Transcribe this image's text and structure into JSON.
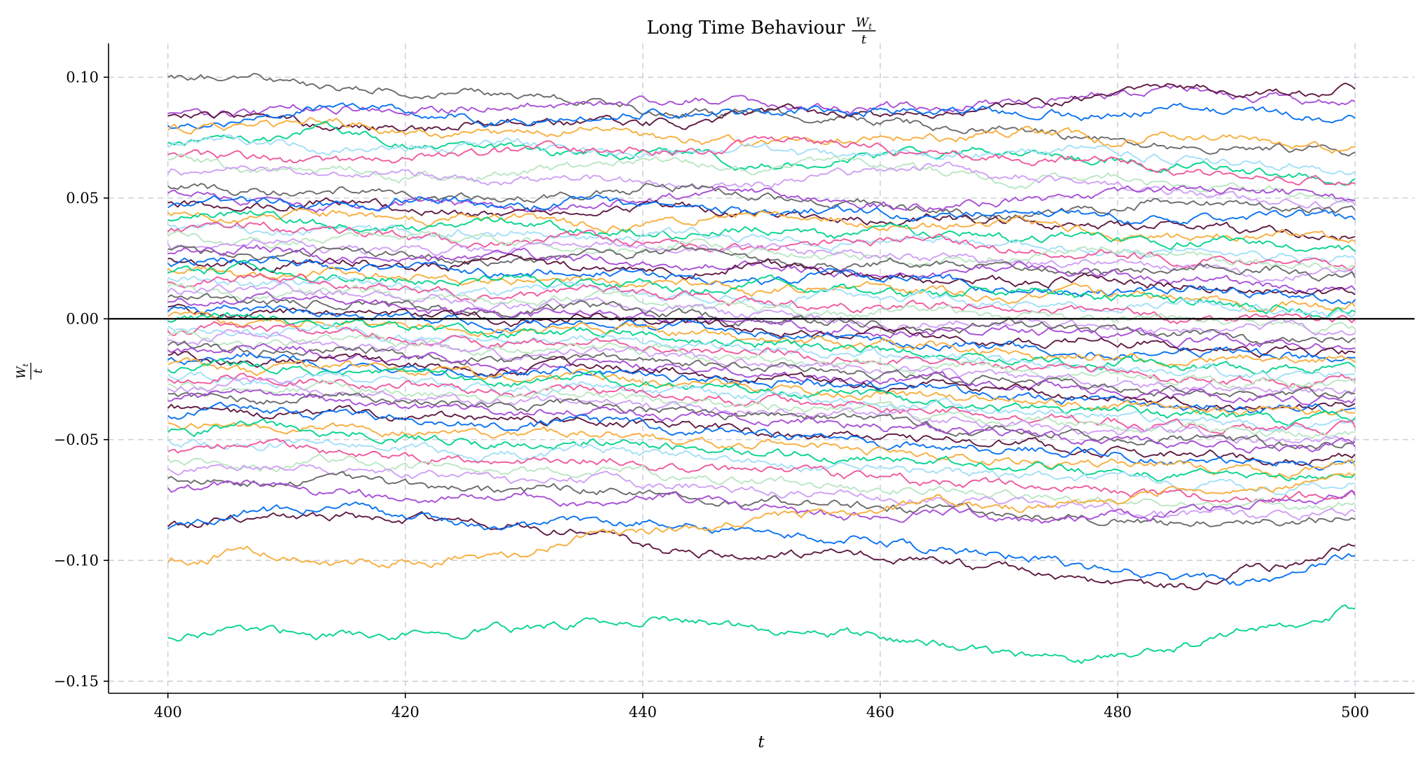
{
  "chart_data": {
    "type": "line",
    "title": "Long Time Behaviour",
    "title_fraction": {
      "numerator": "W",
      "numerator_sub": "t",
      "denominator": "t"
    },
    "xlabel": "t",
    "ylabel_fraction": {
      "numerator": "W",
      "numerator_sub": "t",
      "denominator": "t"
    },
    "xlim": [
      395,
      505
    ],
    "ylim": [
      -0.155,
      0.114
    ],
    "x_ticks": [
      400,
      420,
      440,
      460,
      480,
      500
    ],
    "x_tick_labels": [
      "400",
      "420",
      "440",
      "460",
      "480",
      "500"
    ],
    "y_ticks": [
      0.1,
      0.05,
      0.0,
      -0.05,
      -0.1,
      -0.15
    ],
    "y_tick_labels": [
      "0.10",
      "0.05",
      "0.00",
      "−0.05",
      "−0.10",
      "−0.15"
    ],
    "grid": true,
    "horizontal_reference_line": 0,
    "x_range": [
      400,
      500
    ],
    "palette": [
      "#6b6b6b",
      "#a84fd6",
      "#5e1a42",
      "#0a72f2",
      "#f7ae3d",
      "#06d48e",
      "#a3dff8",
      "#ee5a9e",
      "#b9e6c2",
      "#cfa0f5"
    ],
    "series_keypoints": [
      [
        0.1,
        0.099,
        0.096,
        0.094,
        0.093,
        0.09,
        0.086,
        0.084,
        0.083,
        0.08,
        0.078,
        0.074,
        0.072,
        0.07,
        0.069
      ],
      [
        0.085,
        0.086,
        0.088,
        0.087,
        0.088,
        0.089,
        0.091,
        0.089,
        0.087,
        0.088,
        0.09,
        0.093,
        0.095,
        0.092,
        0.09
      ],
      [
        0.084,
        0.083,
        0.08,
        0.079,
        0.082,
        0.08,
        0.081,
        0.086,
        0.085,
        0.084,
        0.088,
        0.092,
        0.096,
        0.094,
        0.095
      ],
      [
        0.08,
        0.082,
        0.088,
        0.086,
        0.081,
        0.084,
        0.087,
        0.085,
        0.087,
        0.086,
        0.085,
        0.084,
        0.087,
        0.085,
        0.083
      ],
      [
        0.078,
        0.08,
        0.082,
        0.077,
        0.076,
        0.078,
        0.074,
        0.072,
        0.074,
        0.075,
        0.078,
        0.074,
        0.076,
        0.073,
        0.071
      ],
      [
        0.073,
        0.074,
        0.079,
        0.073,
        0.071,
        0.068,
        0.07,
        0.064,
        0.066,
        0.069,
        0.07,
        0.066,
        0.063,
        0.06,
        0.058
      ],
      [
        0.071,
        0.074,
        0.07,
        0.071,
        0.074,
        0.07,
        0.068,
        0.07,
        0.067,
        0.068,
        0.069,
        0.071,
        0.066,
        0.064,
        0.061
      ],
      [
        0.068,
        0.067,
        0.064,
        0.066,
        0.069,
        0.071,
        0.069,
        0.072,
        0.074,
        0.068,
        0.066,
        0.066,
        0.061,
        0.058,
        0.056
      ],
      [
        0.066,
        0.062,
        0.063,
        0.058,
        0.06,
        0.063,
        0.066,
        0.062,
        0.065,
        0.061,
        0.057,
        0.06,
        0.056,
        0.053,
        0.05
      ],
      [
        0.06,
        0.063,
        0.06,
        0.061,
        0.057,
        0.058,
        0.055,
        0.056,
        0.06,
        0.063,
        0.059,
        0.055,
        0.053,
        0.049,
        0.047
      ],
      [
        0.055,
        0.052,
        0.054,
        0.051,
        0.049,
        0.052,
        0.055,
        0.05,
        0.048,
        0.045,
        0.043,
        0.046,
        0.05,
        0.047,
        0.045
      ],
      [
        0.052,
        0.05,
        0.046,
        0.048,
        0.045,
        0.047,
        0.05,
        0.052,
        0.048,
        0.046,
        0.049,
        0.051,
        0.054,
        0.052,
        0.049
      ],
      [
        0.048,
        0.046,
        0.049,
        0.046,
        0.043,
        0.044,
        0.047,
        0.043,
        0.04,
        0.042,
        0.04,
        0.037,
        0.039,
        0.036,
        0.034
      ],
      [
        0.046,
        0.049,
        0.047,
        0.05,
        0.047,
        0.049,
        0.046,
        0.044,
        0.046,
        0.043,
        0.045,
        0.042,
        0.04,
        0.043,
        0.041
      ],
      [
        0.044,
        0.041,
        0.043,
        0.04,
        0.042,
        0.039,
        0.041,
        0.044,
        0.041,
        0.038,
        0.04,
        0.036,
        0.033,
        0.036,
        0.032
      ],
      [
        0.041,
        0.043,
        0.038,
        0.037,
        0.04,
        0.037,
        0.035,
        0.037,
        0.034,
        0.036,
        0.033,
        0.035,
        0.032,
        0.03,
        0.028
      ],
      [
        0.039,
        0.036,
        0.038,
        0.035,
        0.037,
        0.034,
        0.036,
        0.033,
        0.03,
        0.032,
        0.03,
        0.028,
        0.03,
        0.026,
        0.025
      ],
      [
        0.036,
        0.039,
        0.036,
        0.033,
        0.031,
        0.034,
        0.03,
        0.028,
        0.031,
        0.033,
        0.029,
        0.027,
        0.024,
        0.026,
        0.022
      ],
      [
        0.034,
        0.031,
        0.033,
        0.035,
        0.032,
        0.029,
        0.031,
        0.028,
        0.026,
        0.024,
        0.027,
        0.029,
        0.026,
        0.023,
        0.021
      ],
      [
        0.031,
        0.033,
        0.029,
        0.027,
        0.03,
        0.032,
        0.028,
        0.03,
        0.027,
        0.025,
        0.022,
        0.024,
        0.021,
        0.019,
        0.018
      ],
      [
        0.029,
        0.026,
        0.028,
        0.025,
        0.023,
        0.026,
        0.028,
        0.025,
        0.022,
        0.024,
        0.021,
        0.019,
        0.022,
        0.02,
        0.017
      ],
      [
        0.027,
        0.029,
        0.026,
        0.024,
        0.027,
        0.024,
        0.021,
        0.023,
        0.02,
        0.018,
        0.021,
        0.018,
        0.016,
        0.014,
        0.012
      ],
      [
        0.025,
        0.022,
        0.024,
        0.021,
        0.024,
        0.021,
        0.019,
        0.022,
        0.019,
        0.017,
        0.015,
        0.017,
        0.014,
        0.012,
        0.01
      ],
      [
        0.023,
        0.025,
        0.022,
        0.02,
        0.018,
        0.02,
        0.017,
        0.015,
        0.018,
        0.016,
        0.013,
        0.011,
        0.013,
        0.01,
        0.008
      ],
      [
        0.021,
        0.018,
        0.02,
        0.017,
        0.015,
        0.017,
        0.015,
        0.012,
        0.014,
        0.011,
        0.009,
        0.011,
        0.008,
        0.006,
        0.005
      ],
      [
        0.019,
        0.021,
        0.018,
        0.016,
        0.018,
        0.015,
        0.013,
        0.015,
        0.012,
        0.01,
        0.012,
        0.009,
        0.007,
        0.005,
        0.003
      ],
      [
        0.017,
        0.014,
        0.016,
        0.013,
        0.011,
        0.013,
        0.01,
        0.008,
        0.011,
        0.008,
        0.006,
        0.004,
        0.006,
        0.004,
        0.002
      ],
      [
        0.015,
        0.017,
        0.014,
        0.012,
        0.009,
        0.011,
        0.009,
        0.006,
        0.004,
        0.006,
        0.004,
        0.002,
        0.0,
        0.002,
        0.0
      ],
      [
        0.013,
        0.01,
        0.012,
        0.009,
        0.007,
        0.009,
        0.006,
        0.004,
        0.002,
        0.004,
        0.001,
        -0.001,
        0.001,
        -0.002,
        -0.004
      ],
      [
        0.011,
        0.013,
        0.01,
        0.008,
        0.005,
        0.007,
        0.004,
        0.002,
        0.0,
        -0.002,
        0.0,
        -0.003,
        -0.005,
        -0.003,
        -0.006
      ],
      [
        0.009,
        0.006,
        0.008,
        0.005,
        0.003,
        0.005,
        0.002,
        0.0,
        -0.002,
        -0.004,
        -0.002,
        -0.005,
        -0.007,
        -0.009,
        -0.008
      ],
      [
        0.007,
        0.009,
        0.006,
        0.004,
        0.001,
        0.003,
        0.0,
        -0.002,
        -0.004,
        -0.006,
        -0.004,
        -0.007,
        -0.009,
        -0.011,
        -0.012
      ],
      [
        0.005,
        0.002,
        0.004,
        0.001,
        -0.001,
        0.001,
        -0.002,
        -0.004,
        -0.006,
        -0.008,
        -0.01,
        -0.008,
        -0.011,
        -0.013,
        -0.014
      ],
      [
        0.003,
        0.005,
        0.002,
        0.0,
        -0.003,
        -0.001,
        -0.004,
        -0.006,
        -0.008,
        -0.01,
        -0.012,
        -0.014,
        -0.012,
        -0.015,
        -0.016
      ],
      [
        0.001,
        -0.002,
        0.0,
        -0.003,
        -0.005,
        -0.003,
        -0.006,
        -0.008,
        -0.01,
        -0.012,
        -0.014,
        -0.016,
        -0.018,
        -0.016,
        -0.018
      ],
      [
        -0.001,
        0.001,
        -0.002,
        -0.004,
        -0.007,
        -0.005,
        -0.008,
        -0.01,
        -0.012,
        -0.014,
        -0.016,
        -0.018,
        -0.02,
        -0.022,
        -0.02
      ],
      [
        -0.003,
        -0.006,
        -0.004,
        -0.007,
        -0.009,
        -0.007,
        -0.01,
        -0.012,
        -0.014,
        -0.016,
        -0.018,
        -0.02,
        -0.022,
        -0.024,
        -0.023
      ],
      [
        -0.005,
        -0.003,
        -0.006,
        -0.008,
        -0.011,
        -0.009,
        -0.012,
        -0.014,
        -0.016,
        -0.018,
        -0.02,
        -0.022,
        -0.024,
        -0.026,
        -0.025
      ],
      [
        -0.007,
        -0.01,
        -0.008,
        -0.011,
        -0.013,
        -0.011,
        -0.014,
        -0.016,
        -0.018,
        -0.02,
        -0.022,
        -0.024,
        -0.026,
        -0.028,
        -0.027
      ],
      [
        -0.009,
        -0.007,
        -0.01,
        -0.012,
        -0.015,
        -0.013,
        -0.016,
        -0.018,
        -0.02,
        -0.022,
        -0.024,
        -0.026,
        -0.028,
        -0.03,
        -0.029
      ],
      [
        -0.011,
        -0.014,
        -0.012,
        -0.015,
        -0.017,
        -0.015,
        -0.018,
        -0.02,
        -0.022,
        -0.024,
        -0.026,
        -0.028,
        -0.03,
        -0.032,
        -0.031
      ],
      [
        -0.013,
        -0.011,
        -0.014,
        -0.016,
        -0.019,
        -0.017,
        -0.02,
        -0.022,
        -0.024,
        -0.026,
        -0.028,
        -0.03,
        -0.032,
        -0.034,
        -0.033
      ],
      [
        -0.015,
        -0.018,
        -0.016,
        -0.019,
        -0.021,
        -0.019,
        -0.022,
        -0.024,
        -0.026,
        -0.028,
        -0.03,
        -0.032,
        -0.034,
        -0.036,
        -0.035
      ],
      [
        -0.017,
        -0.015,
        -0.018,
        -0.02,
        -0.023,
        -0.021,
        -0.024,
        -0.026,
        -0.028,
        -0.03,
        -0.032,
        -0.034,
        -0.036,
        -0.038,
        -0.037
      ],
      [
        -0.019,
        -0.022,
        -0.02,
        -0.023,
        -0.025,
        -0.023,
        -0.026,
        -0.028,
        -0.03,
        -0.032,
        -0.034,
        -0.036,
        -0.038,
        -0.04,
        -0.039
      ],
      [
        -0.021,
        -0.019,
        -0.022,
        -0.024,
        -0.027,
        -0.025,
        -0.028,
        -0.03,
        -0.032,
        -0.034,
        -0.036,
        -0.038,
        -0.04,
        -0.042,
        -0.041
      ],
      [
        -0.023,
        -0.026,
        -0.024,
        -0.027,
        -0.029,
        -0.027,
        -0.03,
        -0.032,
        -0.034,
        -0.036,
        -0.038,
        -0.04,
        -0.042,
        -0.044,
        -0.043
      ],
      [
        -0.025,
        -0.023,
        -0.026,
        -0.028,
        -0.031,
        -0.029,
        -0.032,
        -0.034,
        -0.036,
        -0.038,
        -0.04,
        -0.042,
        -0.044,
        -0.046,
        -0.045
      ],
      [
        -0.027,
        -0.03,
        -0.028,
        -0.031,
        -0.033,
        -0.031,
        -0.034,
        -0.036,
        -0.038,
        -0.04,
        -0.042,
        -0.044,
        -0.046,
        -0.048,
        -0.047
      ],
      [
        -0.029,
        -0.027,
        -0.03,
        -0.032,
        -0.035,
        -0.033,
        -0.036,
        -0.038,
        -0.04,
        -0.042,
        -0.044,
        -0.046,
        -0.048,
        -0.05,
        -0.049
      ],
      [
        -0.031,
        -0.034,
        -0.032,
        -0.035,
        -0.037,
        -0.035,
        -0.038,
        -0.04,
        -0.042,
        -0.044,
        -0.046,
        -0.048,
        -0.05,
        -0.052,
        -0.051
      ],
      [
        -0.034,
        -0.031,
        -0.034,
        -0.036,
        -0.039,
        -0.037,
        -0.04,
        -0.042,
        -0.044,
        -0.046,
        -0.048,
        -0.05,
        -0.052,
        -0.054,
        -0.053
      ],
      [
        -0.037,
        -0.04,
        -0.038,
        -0.041,
        -0.043,
        -0.041,
        -0.044,
        -0.046,
        -0.048,
        -0.05,
        -0.052,
        -0.054,
        -0.056,
        -0.058,
        -0.056
      ],
      [
        -0.04,
        -0.037,
        -0.04,
        -0.042,
        -0.045,
        -0.043,
        -0.046,
        -0.048,
        -0.05,
        -0.052,
        -0.054,
        -0.056,
        -0.058,
        -0.06,
        -0.059
      ],
      [
        -0.043,
        -0.046,
        -0.044,
        -0.047,
        -0.049,
        -0.047,
        -0.05,
        -0.052,
        -0.054,
        -0.056,
        -0.058,
        -0.06,
        -0.062,
        -0.063,
        -0.061
      ],
      [
        -0.047,
        -0.044,
        -0.047,
        -0.049,
        -0.052,
        -0.05,
        -0.053,
        -0.055,
        -0.057,
        -0.059,
        -0.061,
        -0.063,
        -0.065,
        -0.066,
        -0.064
      ],
      [
        -0.05,
        -0.053,
        -0.051,
        -0.054,
        -0.056,
        -0.054,
        -0.057,
        -0.059,
        -0.061,
        -0.063,
        -0.065,
        -0.067,
        -0.069,
        -0.07,
        -0.068
      ],
      [
        -0.055,
        -0.052,
        -0.055,
        -0.057,
        -0.06,
        -0.058,
        -0.061,
        -0.063,
        -0.065,
        -0.067,
        -0.069,
        -0.071,
        -0.073,
        -0.074,
        -0.072
      ],
      [
        -0.058,
        -0.061,
        -0.059,
        -0.062,
        -0.064,
        -0.062,
        -0.065,
        -0.067,
        -0.069,
        -0.071,
        -0.073,
        -0.075,
        -0.077,
        -0.078,
        -0.076
      ],
      [
        -0.062,
        -0.06,
        -0.063,
        -0.065,
        -0.068,
        -0.066,
        -0.069,
        -0.071,
        -0.073,
        -0.075,
        -0.077,
        -0.079,
        -0.081,
        -0.082,
        -0.08
      ],
      [
        -0.066,
        -0.069,
        -0.067,
        -0.07,
        -0.072,
        -0.07,
        -0.073,
        -0.075,
        -0.077,
        -0.079,
        -0.081,
        -0.083,
        -0.085,
        -0.084,
        -0.083
      ],
      [
        -0.07,
        -0.068,
        -0.072,
        -0.074,
        -0.072,
        -0.076,
        -0.074,
        -0.078,
        -0.082,
        -0.08,
        -0.084,
        -0.082,
        -0.08,
        -0.076,
        -0.073
      ],
      [
        -0.086,
        -0.082,
        -0.082,
        -0.084,
        -0.085,
        -0.088,
        -0.096,
        -0.098,
        -0.097,
        -0.1,
        -0.104,
        -0.109,
        -0.111,
        -0.103,
        -0.094
      ],
      [
        -0.087,
        -0.08,
        -0.078,
        -0.082,
        -0.086,
        -0.084,
        -0.085,
        -0.09,
        -0.091,
        -0.095,
        -0.098,
        -0.103,
        -0.108,
        -0.11,
        -0.098
      ],
      [
        -0.101,
        -0.096,
        -0.102,
        -0.1,
        -0.098,
        -0.09,
        -0.088,
        -0.082,
        -0.08,
        -0.075,
        -0.078,
        -0.076,
        -0.07,
        -0.068,
        -0.064
      ],
      [
        -0.132,
        -0.128,
        -0.131,
        -0.13,
        -0.128,
        -0.126,
        -0.124,
        -0.128,
        -0.131,
        -0.135,
        -0.139,
        -0.141,
        -0.135,
        -0.128,
        -0.12
      ]
    ]
  }
}
